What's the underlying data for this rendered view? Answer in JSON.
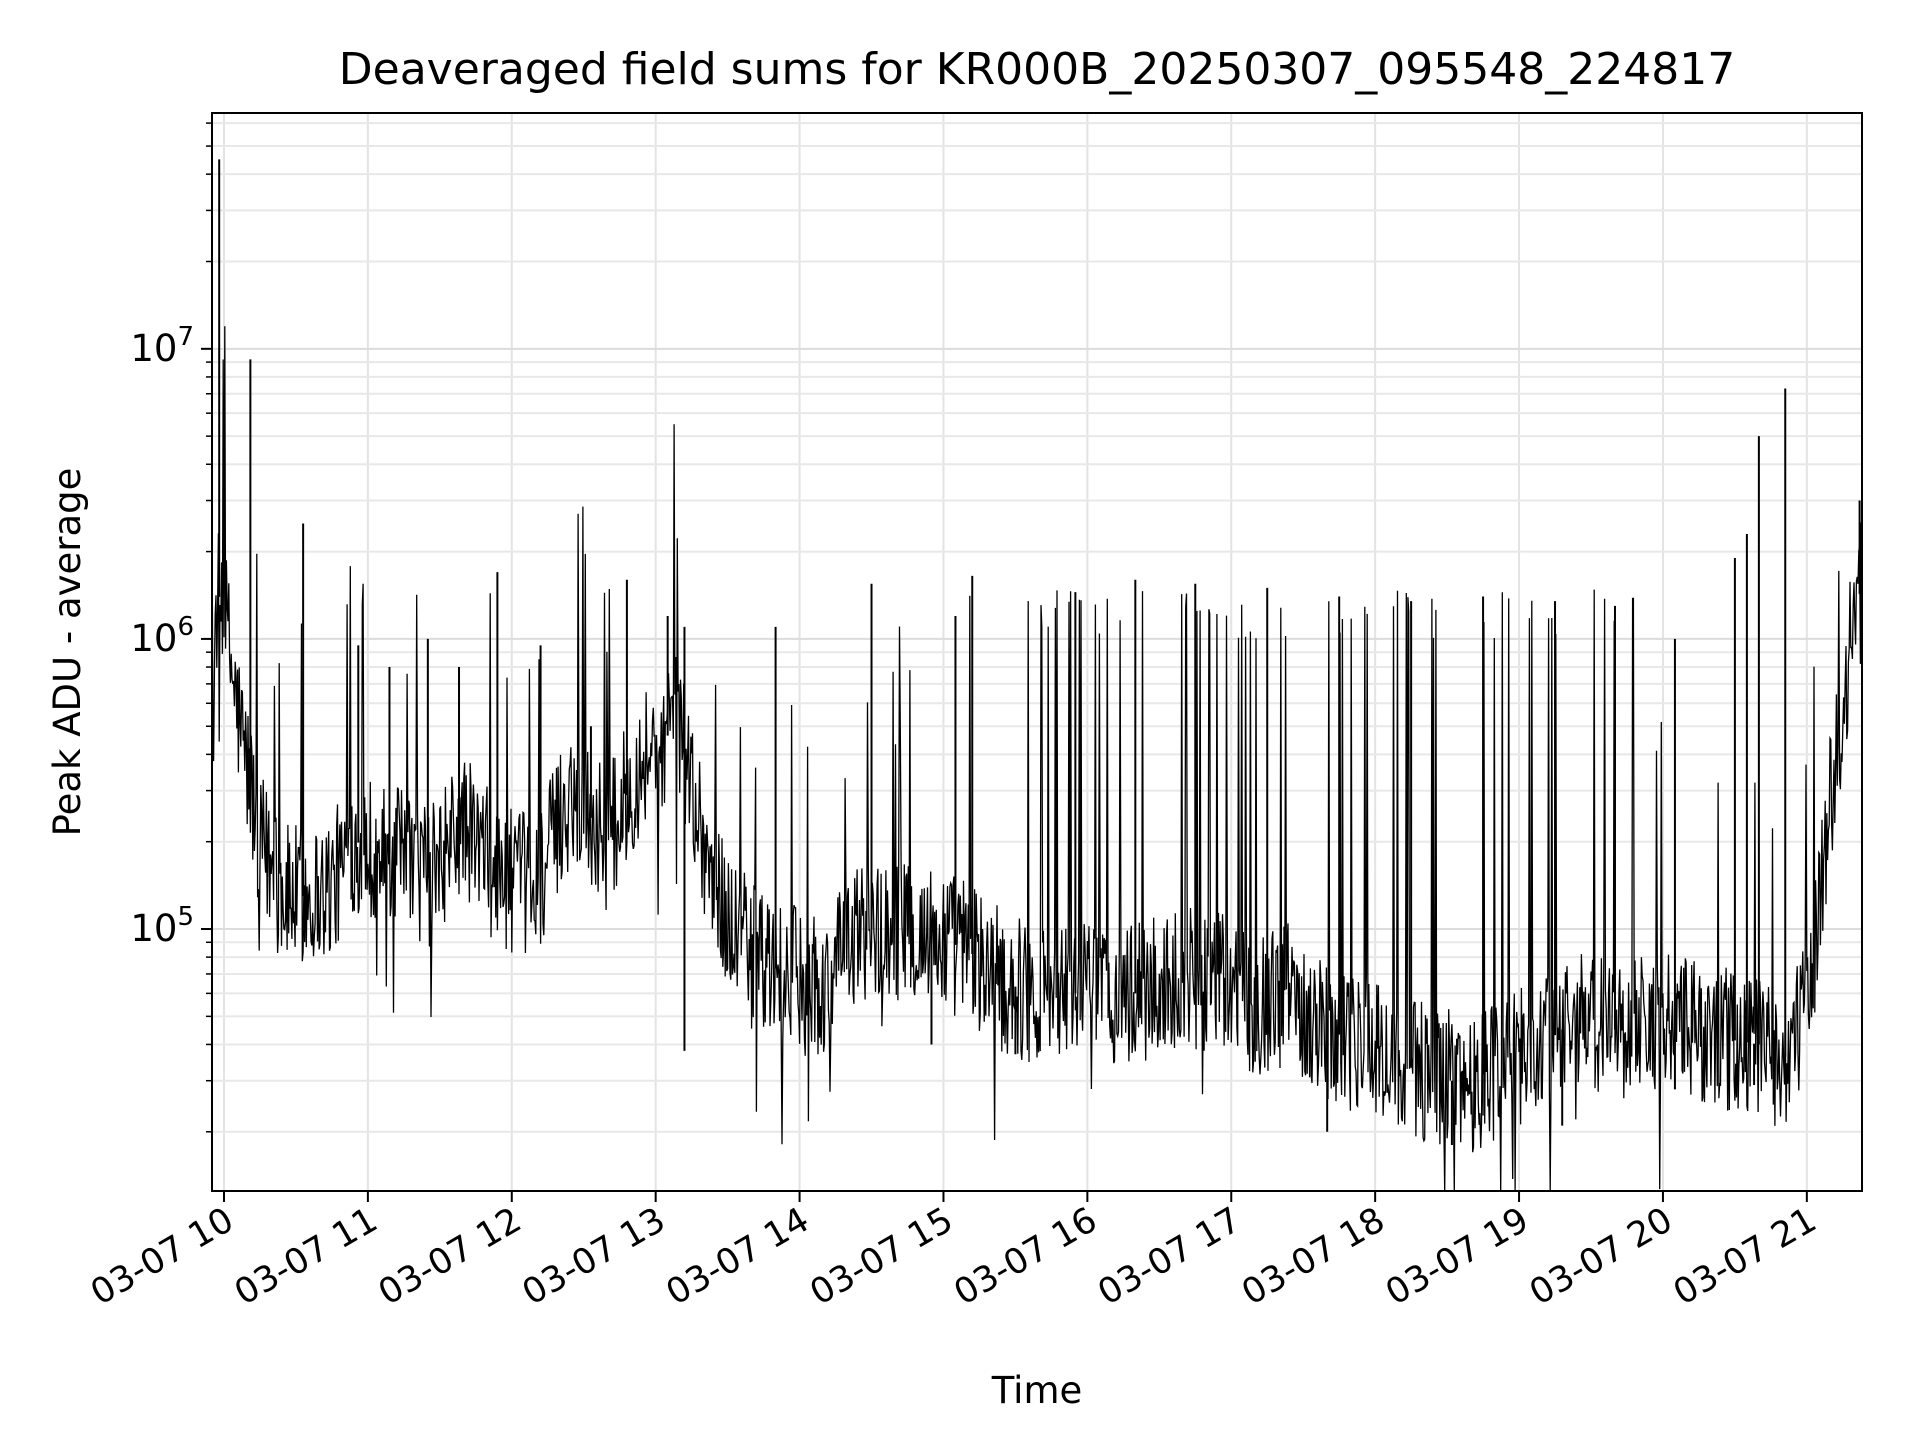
{
  "chart_data": {
    "type": "line",
    "title": "Deaveraged field sums for KR000B_20250307_095548_224817",
    "xlabel": "Time",
    "ylabel": "Peak ADU - average",
    "x_ticks": [
      "03-07 10",
      "03-07 11",
      "03-07 12",
      "03-07 13",
      "03-07 14",
      "03-07 15",
      "03-07 16",
      "03-07 17",
      "03-07 18",
      "03-07 19",
      "03-07 20",
      "03-07 21"
    ],
    "x_tick_times": [
      "2025-03-07T10:00",
      "2025-03-07T11:00",
      "2025-03-07T12:00",
      "2025-03-07T13:00",
      "2025-03-07T14:00",
      "2025-03-07T15:00",
      "2025-03-07T16:00",
      "2025-03-07T17:00",
      "2025-03-07T18:00",
      "2025-03-07T19:00",
      "2025-03-07T20:00",
      "2025-03-07T21:00"
    ],
    "xlim": [
      "2025-03-07T09:55",
      "2025-03-07T21:23"
    ],
    "y_scale": "log",
    "y_ticks": [
      {
        "value": 100000,
        "base": "10",
        "exp": "5"
      },
      {
        "value": 1000000,
        "base": "10",
        "exp": "6"
      },
      {
        "value": 10000000,
        "base": "10",
        "exp": "7"
      }
    ],
    "ylim": [
      12500,
      65000000
    ],
    "grid": true,
    "line_color": "#000000",
    "series": [
      {
        "x": [
          "2025-03-07T09:55",
          "2025-03-07T09:57",
          "2025-03-07T09:59",
          "2025-03-07T10:05",
          "2025-03-07T10:15",
          "2025-03-07T10:25",
          "2025-03-07T10:35",
          "2025-03-07T10:45",
          "2025-03-07T10:55",
          "2025-03-07T11:10",
          "2025-03-07T11:25",
          "2025-03-07T11:40",
          "2025-03-07T11:55",
          "2025-03-07T12:10",
          "2025-03-07T12:25",
          "2025-03-07T12:40",
          "2025-03-07T12:55",
          "2025-03-07T13:10",
          "2025-03-07T13:25",
          "2025-03-07T13:40",
          "2025-03-07T13:55",
          "2025-03-07T14:10",
          "2025-03-07T14:25",
          "2025-03-07T14:40",
          "2025-03-07T14:55",
          "2025-03-07T15:10",
          "2025-03-07T15:25",
          "2025-03-07T15:40",
          "2025-03-07T15:55",
          "2025-03-07T16:10",
          "2025-03-07T16:25",
          "2025-03-07T16:40",
          "2025-03-07T16:55",
          "2025-03-07T17:10",
          "2025-03-07T17:25",
          "2025-03-07T17:40",
          "2025-03-07T17:55",
          "2025-03-07T18:10",
          "2025-03-07T18:25",
          "2025-03-07T18:40",
          "2025-03-07T18:55",
          "2025-03-07T19:10",
          "2025-03-07T19:25",
          "2025-03-07T19:40",
          "2025-03-07T19:55",
          "2025-03-07T20:10",
          "2025-03-07T20:25",
          "2025-03-07T20:40",
          "2025-03-07T20:50",
          "2025-03-07T21:00",
          "2025-03-07T21:05",
          "2025-03-07T21:10",
          "2025-03-07T21:15",
          "2025-03-07T21:20",
          "2025-03-07T21:23"
        ],
        "baseline": [
          400000,
          1300000,
          1500000,
          600000,
          200000,
          130000,
          130000,
          140000,
          200000,
          180000,
          150000,
          230000,
          150000,
          140000,
          300000,
          200000,
          400000,
          500000,
          130000,
          80000,
          70000,
          60000,
          100000,
          100000,
          95000,
          85000,
          65000,
          60000,
          60000,
          60000,
          60000,
          70000,
          65000,
          55000,
          60000,
          45000,
          40000,
          35000,
          30000,
          30000,
          35000,
          40000,
          50000,
          45000,
          50000,
          45000,
          42000,
          40000,
          35000,
          50000,
          120000,
          300000,
          500000,
          1300000,
          1500000
        ],
        "spikes": [
          {
            "x": "2025-03-07T09:58",
            "y": 45000000
          },
          {
            "x": "2025-03-07T10:11",
            "y": 9200000
          },
          {
            "x": "2025-03-07T10:33",
            "y": 2500000
          },
          {
            "x": "2025-03-07T10:56",
            "y": 950000
          },
          {
            "x": "2025-03-07T11:09",
            "y": 800000
          },
          {
            "x": "2025-03-07T11:25",
            "y": 1000000
          },
          {
            "x": "2025-03-07T11:38",
            "y": 800000
          },
          {
            "x": "2025-03-07T11:54",
            "y": 1700000
          },
          {
            "x": "2025-03-07T12:12",
            "y": 950000
          },
          {
            "x": "2025-03-07T12:33",
            "y": 500000
          },
          {
            "x": "2025-03-07T12:48",
            "y": 1600000
          },
          {
            "x": "2025-03-07T13:05",
            "y": 1200000
          },
          {
            "x": "2025-03-07T13:12",
            "y": 1100000
          },
          {
            "x": "2025-03-07T13:50",
            "y": 1100000
          },
          {
            "x": "2025-03-07T14:30",
            "y": 1550000
          },
          {
            "x": "2025-03-07T15:05",
            "y": 1200000
          },
          {
            "x": "2025-03-07T15:12",
            "y": 1650000
          },
          {
            "x": "2025-03-07T15:55",
            "y": 1450000
          },
          {
            "x": "2025-03-07T16:20",
            "y": 1600000
          },
          {
            "x": "2025-03-07T16:45",
            "y": 1550000
          },
          {
            "x": "2025-03-07T17:15",
            "y": 1500000
          },
          {
            "x": "2025-03-07T17:45",
            "y": 1400000
          },
          {
            "x": "2025-03-07T18:15",
            "y": 1350000
          },
          {
            "x": "2025-03-07T18:45",
            "y": 1400000
          },
          {
            "x": "2025-03-07T19:15",
            "y": 1350000
          },
          {
            "x": "2025-03-07T19:40",
            "y": 1300000
          },
          {
            "x": "2025-03-07T20:05",
            "y": 1000000
          },
          {
            "x": "2025-03-07T20:30",
            "y": 1900000
          },
          {
            "x": "2025-03-07T20:35",
            "y": 2300000
          },
          {
            "x": "2025-03-07T20:40",
            "y": 5000000
          },
          {
            "x": "2025-03-07T20:51",
            "y": 7300000
          },
          {
            "x": "2025-03-07T21:22",
            "y": 3000000
          }
        ],
        "dips": [
          {
            "x": "2025-03-07T13:12",
            "y": 38000
          },
          {
            "x": "2025-03-07T14:55",
            "y": 40000
          },
          {
            "x": "2025-03-07T15:30",
            "y": 37000
          },
          {
            "x": "2025-03-07T17:40",
            "y": 20000
          },
          {
            "x": "2025-03-07T18:32",
            "y": 18000
          },
          {
            "x": "2025-03-07T19:18",
            "y": 21000
          },
          {
            "x": "2025-03-07T20:05",
            "y": 28000
          },
          {
            "x": "2025-03-07T20:38",
            "y": 29000
          }
        ]
      }
    ]
  }
}
